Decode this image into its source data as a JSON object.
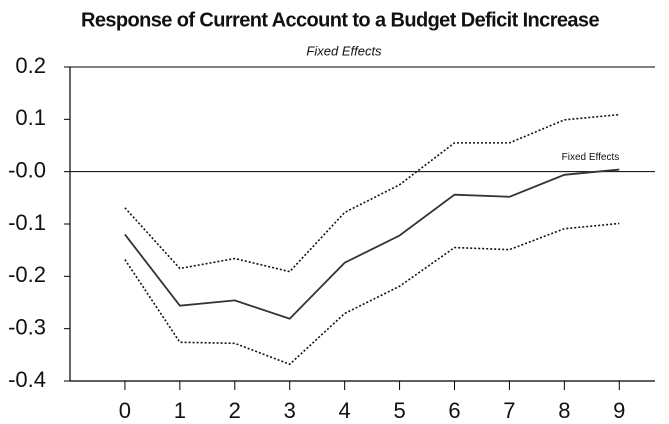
{
  "chart_data": {
    "type": "line",
    "title": "Response of Current Account to a Budget Deficit Increase",
    "subtitle": "Fixed Effects",
    "x": [
      0,
      1,
      2,
      3,
      4,
      5,
      6,
      7,
      8,
      9
    ],
    "xlim": [
      -1,
      9.65
    ],
    "xticks": [
      0,
      1,
      2,
      3,
      4,
      5,
      6,
      7,
      8,
      9
    ],
    "ylim": [
      -0.4,
      0.2
    ],
    "yticks": [
      0.2,
      0.1,
      {
        "value": 0,
        "label": "-0.0"
      },
      -0.1,
      -0.2,
      -0.3,
      -0.4
    ],
    "series": [
      {
        "name": "Fixed Effects",
        "color": "#333333",
        "style": "solid",
        "values": [
          -0.12,
          -0.256,
          -0.246,
          -0.281,
          -0.174,
          -0.122,
          -0.044,
          -0.048,
          -0.006,
          0.004
        ]
      },
      {
        "color": "#111111",
        "style": "dotted",
        "values": [
          -0.069,
          -0.185,
          -0.166,
          -0.191,
          -0.078,
          -0.025,
          0.055,
          0.055,
          0.099,
          0.109
        ]
      },
      {
        "color": "#111111",
        "style": "dotted",
        "values": [
          -0.168,
          -0.326,
          -0.328,
          -0.368,
          -0.271,
          -0.219,
          -0.145,
          -0.149,
          -0.109,
          -0.099
        ]
      }
    ]
  }
}
